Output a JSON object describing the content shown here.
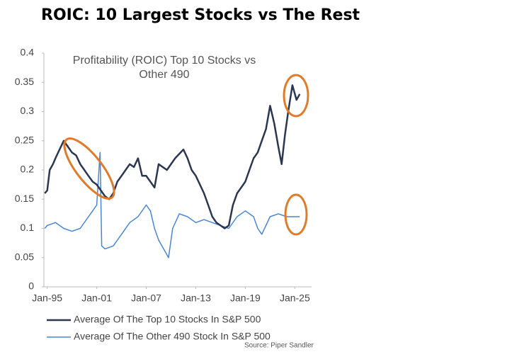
{
  "chart_data": {
    "type": "line",
    "title": "ROIC: 10 Largest Stocks vs The Rest",
    "subtitle_lines": [
      "Profitability (ROIC) Top 10 Stocks vs",
      "Other 490"
    ],
    "source": "Source: Piper Sandler",
    "xlim": [
      1994.6,
      2026.6
    ],
    "xticks": [
      {
        "value": 1995,
        "label": "Jan-95"
      },
      {
        "value": 2001,
        "label": "Jan-01"
      },
      {
        "value": 2007,
        "label": "Jan-07"
      },
      {
        "value": 2013,
        "label": "Jan-13"
      },
      {
        "value": 2019,
        "label": "Jan-19"
      },
      {
        "value": 2025,
        "label": "Jan-25"
      }
    ],
    "ylim": [
      0,
      0.4
    ],
    "yticks": [
      0,
      0.05,
      0.1,
      0.15,
      0.2,
      0.25,
      0.3,
      0.35,
      0.4
    ],
    "grid": false,
    "series": [
      {
        "name": "Average Of The Top 10 Stocks In S&P 500",
        "color": "#2b3650",
        "x": [
          1994.7,
          1995,
          1995.3,
          1995.7,
          1996,
          1996.5,
          1997,
          1997.5,
          1998,
          1998.5,
          1999,
          1999.5,
          2000,
          2000.5,
          2001,
          2001.5,
          2002,
          2002.5,
          2003,
          2003.5,
          2004,
          2004.5,
          2005,
          2005.5,
          2006,
          2006.5,
          2007,
          2008,
          2008.5,
          2009.5,
          2010.5,
          2011.5,
          2012,
          2012.5,
          2013,
          2013.5,
          2014,
          2014.5,
          2015,
          2015.5,
          2016,
          2016.5,
          2017,
          2017.5,
          2018,
          2018.5,
          2019,
          2019.5,
          2020,
          2020.5,
          2021,
          2021.5,
          2022,
          2022.5,
          2023,
          2023.4,
          2023.8,
          2024.2,
          2024.7,
          2025.2,
          2025.6
        ],
        "values": [
          0.16,
          0.165,
          0.2,
          0.21,
          0.22,
          0.235,
          0.25,
          0.24,
          0.23,
          0.225,
          0.21,
          0.2,
          0.19,
          0.18,
          0.175,
          0.165,
          0.155,
          0.15,
          0.16,
          0.18,
          0.19,
          0.2,
          0.21,
          0.205,
          0.22,
          0.19,
          0.19,
          0.17,
          0.21,
          0.2,
          0.22,
          0.235,
          0.22,
          0.2,
          0.19,
          0.175,
          0.16,
          0.14,
          0.12,
          0.11,
          0.105,
          0.1,
          0.105,
          0.14,
          0.16,
          0.17,
          0.18,
          0.2,
          0.22,
          0.23,
          0.25,
          0.27,
          0.31,
          0.28,
          0.24,
          0.21,
          0.26,
          0.3,
          0.345,
          0.32,
          0.33
        ]
      },
      {
        "name": "Average Of The Other 490 Stock In S&P 500",
        "color": "#4a86d0",
        "x": [
          1994.7,
          1995,
          1996,
          1997,
          1998,
          1999,
          2000,
          2000.5,
          2001,
          2001.4,
          2001.6,
          2002,
          2003,
          2004,
          2005,
          2006,
          2007,
          2007.5,
          2008,
          2008.5,
          2009.7,
          2010.2,
          2011,
          2012,
          2013,
          2014,
          2015,
          2016,
          2017,
          2018,
          2019,
          2020,
          2020.5,
          2021,
          2022,
          2023,
          2024,
          2025,
          2025.6
        ],
        "values": [
          0.1,
          0.105,
          0.11,
          0.1,
          0.095,
          0.1,
          0.12,
          0.13,
          0.14,
          0.23,
          0.07,
          0.065,
          0.07,
          0.09,
          0.11,
          0.12,
          0.14,
          0.13,
          0.1,
          0.08,
          0.05,
          0.1,
          0.125,
          0.12,
          0.11,
          0.115,
          0.11,
          0.105,
          0.1,
          0.12,
          0.13,
          0.12,
          0.1,
          0.09,
          0.12,
          0.125,
          0.12,
          0.12,
          0.12
        ]
      }
    ]
  }
}
